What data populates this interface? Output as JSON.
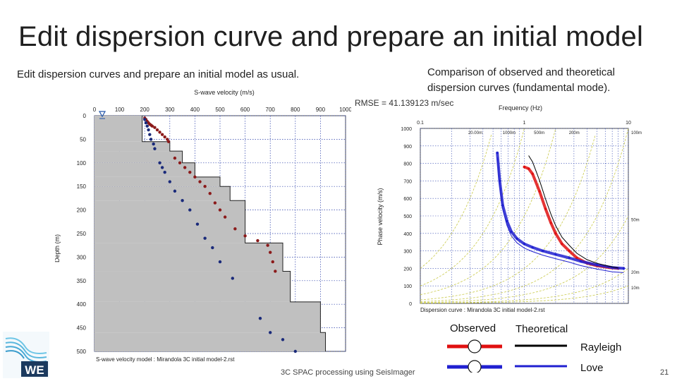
{
  "slide": {
    "title": "Edit dispersion curve and prepare an initial model",
    "left_caption": "Edit dispersion curves and prepare an initial model as usual.",
    "right_caption": "Comparison of observed and theoretical dispersion curves (fundamental mode).",
    "footer": "3C SPAC processing using SeisImager",
    "page_number": "21",
    "logo_text": "WE"
  },
  "legend": {
    "observed": "Observed",
    "theoretical": "Theoretical",
    "rayleigh": "Rayleigh",
    "love": "Love",
    "rayleigh_color": "#e01010",
    "love_color": "#2020d0",
    "theoretical_color": "#000000"
  },
  "chart_data": [
    {
      "type": "scatter",
      "title": "S-wave velocity (m/s)",
      "xlabel": "S-wave velocity (m/s)",
      "ylabel": "Depth (m)",
      "footer_label": "S-wave velocity model : Mirandola 3C initial model-2.rst",
      "xlim": [
        0,
        1000
      ],
      "ylim": [
        0,
        500
      ],
      "x_ticks": [
        "0",
        "100",
        "200",
        "300",
        "400",
        "500",
        "600",
        "700",
        "800",
        "900",
        "1000"
      ],
      "y_ticks": [
        "0",
        "50",
        "100",
        "150",
        "200",
        "250",
        "300",
        "350",
        "400",
        "450",
        "500"
      ],
      "grid": true,
      "model_fill_color": "#c0c0c0",
      "model_steps": [
        {
          "velocity": 190,
          "top": 0,
          "bottom": 55
        },
        {
          "velocity": 300,
          "top": 55,
          "bottom": 75
        },
        {
          "velocity": 350,
          "top": 75,
          "bottom": 100
        },
        {
          "velocity": 400,
          "top": 100,
          "bottom": 130
        },
        {
          "velocity": 500,
          "top": 130,
          "bottom": 150
        },
        {
          "velocity": 540,
          "top": 150,
          "bottom": 180
        },
        {
          "velocity": 600,
          "top": 180,
          "bottom": 270
        },
        {
          "velocity": 750,
          "top": 270,
          "bottom": 330
        },
        {
          "velocity": 780,
          "top": 330,
          "bottom": 395
        },
        {
          "velocity": 900,
          "top": 395,
          "bottom": 460
        },
        {
          "velocity": 920,
          "top": 460,
          "bottom": 500
        }
      ],
      "series": [
        {
          "name": "Rayleigh",
          "color": "#8b1a1a",
          "points": [
            [
              200,
              5
            ],
            [
              205,
              8
            ],
            [
              210,
              12
            ],
            [
              215,
              15
            ],
            [
              220,
              18
            ],
            [
              225,
              20
            ],
            [
              230,
              22
            ],
            [
              240,
              25
            ],
            [
              250,
              30
            ],
            [
              260,
              35
            ],
            [
              270,
              40
            ],
            [
              280,
              45
            ],
            [
              290,
              50
            ],
            [
              295,
              55
            ],
            [
              320,
              90
            ],
            [
              340,
              100
            ],
            [
              360,
              110
            ],
            [
              380,
              120
            ],
            [
              400,
              130
            ],
            [
              420,
              140
            ],
            [
              440,
              150
            ],
            [
              460,
              165
            ],
            [
              480,
              185
            ],
            [
              500,
              200
            ],
            [
              520,
              215
            ],
            [
              560,
              240
            ],
            [
              600,
              255
            ],
            [
              650,
              265
            ],
            [
              690,
              275
            ],
            [
              700,
              290
            ],
            [
              710,
              310
            ],
            [
              720,
              330
            ]
          ]
        },
        {
          "name": "Love",
          "color": "#1a2a7a",
          "points": [
            [
              200,
              8
            ],
            [
              205,
              15
            ],
            [
              210,
              22
            ],
            [
              215,
              30
            ],
            [
              220,
              40
            ],
            [
              225,
              50
            ],
            [
              235,
              60
            ],
            [
              240,
              70
            ],
            [
              260,
              100
            ],
            [
              270,
              110
            ],
            [
              280,
              120
            ],
            [
              300,
              140
            ],
            [
              320,
              160
            ],
            [
              350,
              180
            ],
            [
              380,
              200
            ],
            [
              410,
              230
            ],
            [
              440,
              260
            ],
            [
              470,
              280
            ],
            [
              500,
              310
            ],
            [
              550,
              345
            ],
            [
              660,
              430
            ],
            [
              700,
              460
            ],
            [
              750,
              475
            ],
            [
              800,
              500
            ]
          ]
        }
      ]
    },
    {
      "type": "line",
      "title": "Frequency (Hz)",
      "xlabel": "Frequency (Hz)",
      "ylabel": "Phase velocity (m/s)",
      "footer_label": "Dispersion curve : Mirandola 3C initial model-2.rst",
      "x_scale": "log",
      "xlim": [
        0.1,
        10
      ],
      "ylim": [
        0,
        1000
      ],
      "x_ticks": [
        "0.1",
        "1",
        "10"
      ],
      "y_ticks": [
        "0",
        "100",
        "200",
        "300",
        "400",
        "500",
        "600",
        "700",
        "800",
        "900",
        "1000"
      ],
      "wavelength_labels": [
        "20.00m",
        "1000m",
        "500m",
        "200m",
        "100m",
        "50m",
        "20m",
        "10m"
      ],
      "grid": true,
      "series": [
        {
          "name": "Rayleigh",
          "color": "#e01010",
          "x": [
            1.0,
            1.1,
            1.2,
            1.4,
            1.6,
            1.8,
            2.0,
            2.3,
            2.7,
            3.2,
            4.0,
            5.0,
            6.5,
            8.0
          ],
          "y": [
            780,
            770,
            740,
            640,
            540,
            460,
            400,
            340,
            300,
            260,
            230,
            215,
            205,
            200
          ]
        },
        {
          "name": "Love",
          "color": "#2020d0",
          "x": [
            0.55,
            0.58,
            0.62,
            0.68,
            0.75,
            0.85,
            1.0,
            1.2,
            1.5,
            2.0,
            2.7,
            3.5,
            5.0,
            7.0,
            9.0
          ],
          "y": [
            860,
            700,
            560,
            470,
            410,
            370,
            340,
            320,
            300,
            280,
            260,
            240,
            220,
            205,
            200
          ]
        }
      ]
    }
  ]
}
